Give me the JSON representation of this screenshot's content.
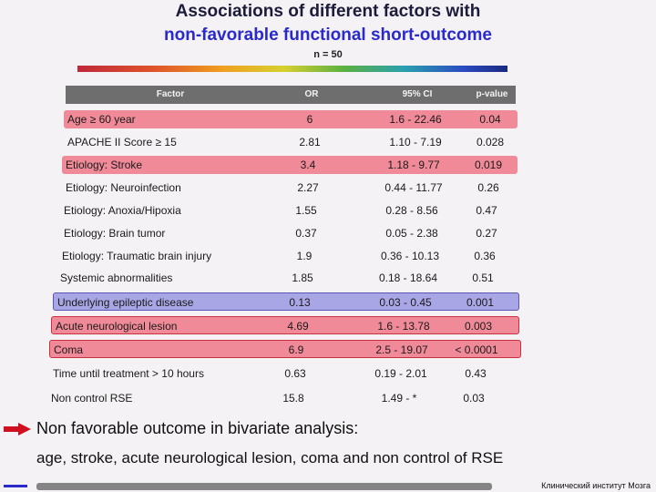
{
  "title_line1": "Associations of different factors with",
  "title_line2": "non-favorable functional short-outcome",
  "subtitle": "n = 50",
  "table": {
    "headers": {
      "factor": "Factor",
      "or": "OR",
      "ci": "95% CI",
      "p": "p-value"
    },
    "rows": [
      {
        "factor": "Age ≥ 60 year",
        "or": "6",
        "ci": "1.6 - 22.46",
        "p": "0.04",
        "highlight": "red"
      },
      {
        "factor": "APACHE II Score ≥ 15",
        "or": "2.81",
        "ci": "1.10 - 7.19",
        "p": "0.028",
        "highlight": "none"
      },
      {
        "factor": "Etiology: Stroke",
        "or": "3.4",
        "ci": "1.18 - 9.77",
        "p": "0.019",
        "highlight": "red"
      },
      {
        "factor": "Etiology: Neuroinfection",
        "or": "2.27",
        "ci": "0.44 - 11.77",
        "p": "0.26",
        "highlight": "none"
      },
      {
        "factor": "Etiology: Anoxia/Hipoxia",
        "or": "1.55",
        "ci": "0.28 - 8.56",
        "p": "0.47",
        "highlight": "none"
      },
      {
        "factor": "Etiology: Brain tumor",
        "or": "0.37",
        "ci": "0.05 - 2.38",
        "p": "0.27",
        "highlight": "none"
      },
      {
        "factor": "Etiology: Traumatic brain injury",
        "or": "1.9",
        "ci": "0.36 - 10.13",
        "p": "0.36",
        "highlight": "none"
      },
      {
        "factor": "Systemic abnormalities",
        "or": "1.85",
        "ci": "0.18 - 18.64",
        "p": "0.51",
        "highlight": "none"
      },
      {
        "factor": "Underlying epileptic disease",
        "or": "0.13",
        "ci": "0.03 - 0.45",
        "p": "0.001",
        "highlight": "blue"
      },
      {
        "factor": "Acute neurological lesion",
        "or": "4.69",
        "ci": "1.6 - 13.78",
        "p": "0.003",
        "highlight": "red-bordered"
      },
      {
        "factor": "Coma",
        "or": "6.9",
        "ci": "2.5 - 19.07",
        "p": "< 0.0001",
        "highlight": "red-bordered"
      },
      {
        "factor": "Time until treatment > 10 hours",
        "or": "0.63",
        "ci": "0.19 - 2.01",
        "p": "0.43",
        "highlight": "none"
      },
      {
        "factor": "Non control RSE",
        "or": "15.8",
        "ci": "1.49 - *",
        "p": "0.03",
        "highlight": "none"
      }
    ]
  },
  "note": {
    "line1": "Non favorable outcome in bivariate analysis:",
    "line2": "age, stroke, acute neurological lesion, coma and non control of RSE"
  },
  "credit": "Клинический институт Мозга",
  "colors": {
    "highlight_red": "#f08a98",
    "highlight_blue": "#a9a6e6",
    "title_blue": "#2a2acc",
    "arrow_red": "#d01020"
  }
}
